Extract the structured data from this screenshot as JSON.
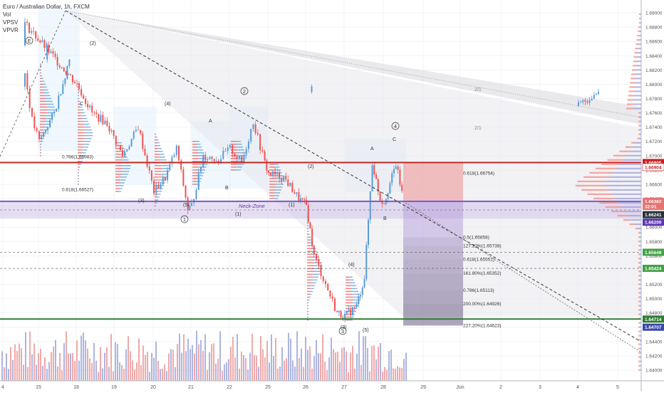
{
  "header": {
    "title": "Euro / Australian Dollar, 1h, FXCM",
    "indicators": [
      "Vol",
      "VPSV",
      "VPVR"
    ]
  },
  "chart_data": {
    "type": "candlestick",
    "symbol": "Euro / Australian Dollar",
    "timeframe": "1h",
    "x_ticks": [
      "4",
      "15",
      "18",
      "19",
      "20",
      "21",
      "22",
      "25",
      "26",
      "27",
      "28",
      "29",
      "Jun",
      "2",
      "3",
      "4",
      "5"
    ],
    "y_ticks": [
      "1.69000",
      "1.68800",
      "1.68600",
      "1.68400",
      "1.68200",
      "1.68000",
      "1.67800",
      "1.67600",
      "1.67400",
      "1.67200",
      "1.67000",
      "1.66800",
      "1.66600",
      "1.66400",
      "1.66200",
      "1.66000",
      "1.65800",
      "1.65600",
      "1.65400",
      "1.65200",
      "1.65000",
      "1.64800",
      "1.64600",
      "1.64400",
      "1.64200",
      "1.64000"
    ],
    "ylim": [
      1.6392,
      1.691
    ],
    "close_path": [
      {
        "d": "4",
        "p": 1.677
      },
      {
        "d": "4.5",
        "p": 1.679
      },
      {
        "d": "14.6",
        "p": 1.6815
      },
      {
        "d": "14.8",
        "p": 1.675
      },
      {
        "d": "15",
        "p": 1.672
      },
      {
        "d": "15.4",
        "p": 1.676
      },
      {
        "d": "15.8",
        "p": 1.6835
      },
      {
        "d": "17.6",
        "p": 1.6885
      },
      {
        "d": "18",
        "p": 1.68
      },
      {
        "d": "18.4",
        "p": 1.676
      },
      {
        "d": "18.8",
        "p": 1.6745
      },
      {
        "d": "19.2",
        "p": 1.67
      },
      {
        "d": "19.6",
        "p": 1.674
      },
      {
        "d": "20",
        "p": 1.665
      },
      {
        "d": "20.3",
        "p": 1.667
      },
      {
        "d": "20.6",
        "p": 1.671
      },
      {
        "d": "20.9",
        "p": 1.6625
      },
      {
        "d": "21",
        "p": 1.663
      },
      {
        "d": "21.3",
        "p": 1.67
      },
      {
        "d": "21.7",
        "p": 1.6695
      },
      {
        "d": "22",
        "p": 1.671
      },
      {
        "d": "22.3",
        "p": 1.669
      },
      {
        "d": "22.6",
        "p": 1.6748
      },
      {
        "d": "22.9",
        "p": 1.669
      },
      {
        "d": "25",
        "p": 1.6675
      },
      {
        "d": "25.4",
        "p": 1.667
      },
      {
        "d": "25.8",
        "p": 1.664
      },
      {
        "d": "26",
        "p": 1.663
      },
      {
        "d": "26.2",
        "p": 1.656
      },
      {
        "d": "26.5",
        "p": 1.652
      },
      {
        "d": "26.8",
        "p": 1.648
      },
      {
        "d": "27",
        "p": 1.6475
      },
      {
        "d": "27.3",
        "p": 1.649
      },
      {
        "d": "27.5",
        "p": 1.653
      },
      {
        "d": "27.7",
        "p": 1.669
      },
      {
        "d": "27.9",
        "p": 1.664
      },
      {
        "d": "28",
        "p": 1.6635
      },
      {
        "d": "28.3",
        "p": 1.6688
      },
      {
        "d": "28.5",
        "p": 1.6635
      }
    ],
    "price_labels": [
      {
        "text": "1.66905",
        "price": 1.66905,
        "bg": "#cc1f1f",
        "fg": "#ffffff"
      },
      {
        "text": "1.66904",
        "price": 1.6684,
        "bg": "#ffffff",
        "fg": "#cc1f1f"
      },
      {
        "text": "1.66362",
        "price": 1.66362,
        "bg": "#e57373",
        "fg": "#ffffff"
      },
      {
        "text": "32:01",
        "price": 1.6629,
        "bg": "#e57373",
        "fg": "#ffffff"
      },
      {
        "text": "1.66241",
        "price": 1.66175,
        "bg": "#263238",
        "fg": "#ffffff"
      },
      {
        "text": "1.66200",
        "price": 1.6607,
        "bg": "#5e35b1",
        "fg": "#ffffff"
      },
      {
        "text": "1.65649",
        "price": 1.65649,
        "bg": "#43a047",
        "fg": "#ffffff"
      },
      {
        "text": "1.65424",
        "price": 1.65424,
        "bg": "#43a047",
        "fg": "#ffffff"
      },
      {
        "text": "1.64714",
        "price": 1.64714,
        "bg": "#2e7d32",
        "fg": "#ffffff"
      },
      {
        "text": "1.64707",
        "price": 1.646,
        "bg": "#3949ab",
        "fg": "#ffffff"
      }
    ],
    "horizontal_levels": [
      {
        "name": "resistance-line",
        "price": 1.66905,
        "color": "#c62828"
      },
      {
        "name": "neckline",
        "price": 1.66362,
        "color": "#7e57c2"
      },
      {
        "name": "support-line",
        "price": 1.64714,
        "color": "#2e7d32"
      }
    ],
    "fib_labels": [
      {
        "text": "0.618(1.66754)",
        "price": 1.66754
      },
      {
        "text": "0.5(1.65858)",
        "price": 1.65858
      },
      {
        "text": "127.20%(1.65738)",
        "price": 1.65738
      },
      {
        "text": "0.618(1.65551)",
        "price": 1.65551
      },
      {
        "text": "161.80%(1.65352)",
        "price": 1.65352
      },
      {
        "text": "0.786(1.65113)",
        "price": 1.65113
      },
      {
        "text": "200.00%(1.64926)",
        "price": 1.64926
      },
      {
        "text": "227.20%(1.64623)",
        "price": 1.64623
      },
      {
        "text": "0.786(1.66983)",
        "price": 1.66983
      },
      {
        "text": "0.618(1.66527)",
        "price": 1.66527
      }
    ],
    "annotations": {
      "neck_zone": "Neck-Zone",
      "wave_labels": [
        "E",
        "(2)",
        "(3)",
        "(4)",
        "(5)",
        "1",
        "2",
        "4",
        "A",
        "B",
        "C",
        "(1)",
        "(2)",
        "(3)",
        "(4)",
        "(5)",
        "3",
        "A",
        "B",
        "C",
        "(1)"
      ],
      "fan_labels": [
        "2/1",
        "2/1"
      ]
    },
    "colors": {
      "up": "#5b9bd5",
      "down": "#ef5350",
      "volume_up": "#9fa8da",
      "volume_down": "#ef9a9a",
      "vpvr_up": "#9e9edc",
      "vpvr_down": "#f28b82",
      "trendline": "#333333"
    },
    "grid": true
  }
}
